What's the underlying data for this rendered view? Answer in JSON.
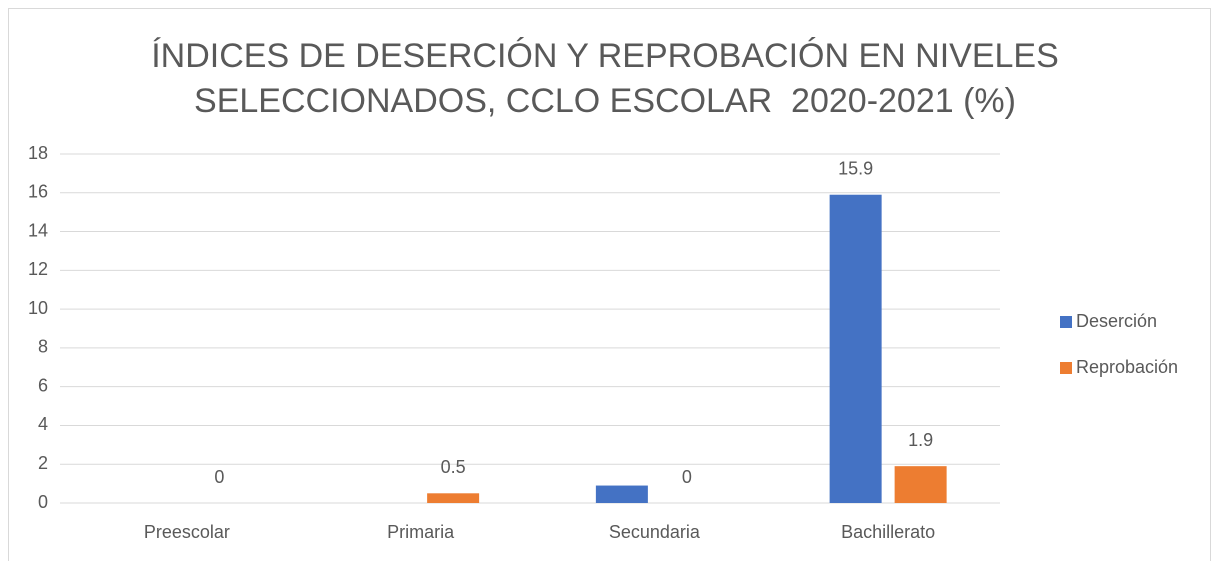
{
  "chart_data": {
    "type": "bar",
    "title": [
      "ÍNDICES DE DESERCIÓN Y REPROBACIÓN EN NIVELES",
      "SELECCIONADOS, CCLO ESCOLAR  2020-2021 (%)"
    ],
    "categories": [
      "Preescolar",
      "Primaria",
      "Secundaria",
      "Bachillerato"
    ],
    "series": [
      {
        "name": "Deserción",
        "color": "#4472c4",
        "values": [
          null,
          null,
          0.9,
          15.9
        ],
        "value_labels": [
          null,
          null,
          null,
          "15.9"
        ]
      },
      {
        "name": "Reprobación",
        "color": "#ed7d31",
        "values": [
          0,
          0.5,
          0,
          1.9
        ]
      }
    ],
    "ylim": [
      0,
      18
    ],
    "yticks": [
      0,
      2,
      4,
      6,
      8,
      10,
      12,
      14,
      16,
      18
    ],
    "grid": true,
    "legend": "right"
  }
}
